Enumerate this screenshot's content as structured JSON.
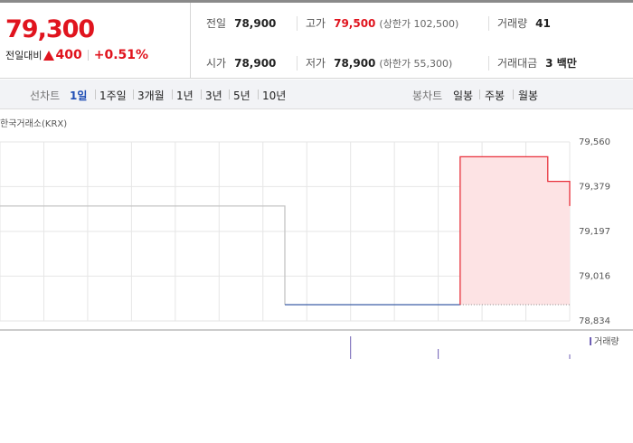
{
  "header": {
    "price": "79,300",
    "change_label": "전일대비",
    "change": "400",
    "change_pct": "+0.51%",
    "stats": [
      {
        "label": "전일",
        "value": "78,900"
      },
      {
        "label": "고가",
        "value": "79,500",
        "note": "(상한가 102,500)"
      },
      {
        "label": "거래량",
        "value": "41"
      },
      {
        "label": "시가",
        "value": "78,900"
      },
      {
        "label": "저가",
        "value": "78,900",
        "note": "(하한가 55,300)"
      },
      {
        "label": "거래대금",
        "value": "3 백만"
      }
    ]
  },
  "tabs": {
    "line_label": "선차트",
    "line_items": [
      "1일",
      "1주일",
      "3개월",
      "1년",
      "3년",
      "5년",
      "10년"
    ],
    "candle_label": "봉차트",
    "candle_items": [
      "일봉",
      "주봉",
      "월봉"
    ]
  },
  "chart_data": {
    "type": "line",
    "source": "한국거래소(KRX)",
    "series": [
      {
        "color": "#c4c4c4",
        "x": [
          0,
          13,
          13
        ],
        "values": [
          79300,
          79300,
          78900
        ]
      },
      {
        "color": "#3d5fa8",
        "x": [
          13,
          21
        ],
        "values": [
          78900,
          78900
        ]
      },
      {
        "color": "#e8303a",
        "x": [
          21,
          21,
          25,
          25,
          26,
          26
        ],
        "values": [
          78900,
          79500,
          79500,
          79400,
          79400,
          79300
        ],
        "fill": "#fde3e4"
      }
    ],
    "baseline": 78900,
    "xlim": [
      0,
      26
    ],
    "xticks": [
      0,
      2,
      4,
      6,
      8,
      10,
      12,
      14,
      16,
      18,
      20,
      22,
      24,
      26
    ],
    "ylim": [
      78834,
      79560
    ],
    "yticks": [
      {
        "value": 78834,
        "label": "78,834"
      },
      {
        "value": 79016,
        "label": "79,016"
      },
      {
        "value": 79197,
        "label": "79,197"
      },
      {
        "value": 79379,
        "label": "79,379"
      },
      {
        "value": 79560,
        "label": "79,560"
      }
    ],
    "grid": true,
    "volume": {
      "name": "거래량",
      "color": "#6f5fb5",
      "x": [
        16,
        20,
        26
      ],
      "values": [
        25,
        11,
        5
      ],
      "ylim": [
        0,
        32
      ]
    }
  }
}
